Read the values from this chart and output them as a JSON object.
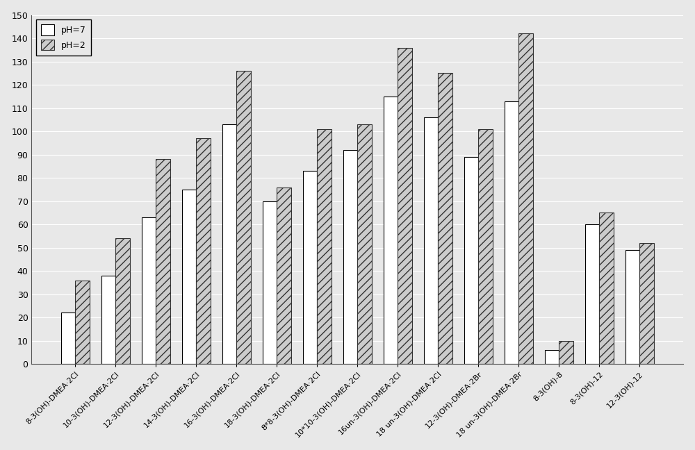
{
  "categories": [
    "8-3(OH)-DMEA·2Cl",
    "10-3(OH)-DMEA·2Cl",
    "12-3(OH)-DMEA·2Cl",
    "14-3(OH)-DMEA·2Cl",
    "16-3(OH)-DMEA·2Cl",
    "18-3(OH)-DMEA·2Cl",
    "8*8-3(OH)-DMEA·2Cl",
    "10*10-3(OH)-DMEA·2Cl",
    "16un-3(OH)-DMEA·2Cl",
    "18 un-3(OH)-DMEA·2Cl",
    "12-3(OH)-DMEA·2Br",
    "18 un-3(OH)-DMEA·2Br",
    "8-3(OH)-8",
    "8-3(OH)-12",
    "12-3(OH)-12"
  ],
  "ph7_values": [
    22,
    38,
    63,
    75,
    103,
    70,
    83,
    92,
    115,
    106,
    89,
    113,
    6,
    60,
    49
  ],
  "ph2_values": [
    36,
    54,
    88,
    97,
    126,
    76,
    101,
    103,
    136,
    125,
    101,
    142,
    10,
    65,
    52
  ],
  "ylim": [
    0,
    150
  ],
  "yticks": [
    0,
    10,
    20,
    30,
    40,
    50,
    60,
    70,
    80,
    90,
    100,
    110,
    120,
    130,
    140,
    150
  ],
  "bar_width": 0.35,
  "legend_ph7": "pH=7",
  "legend_ph2": "pH=2",
  "fig_bg": "#e8e8e8",
  "plot_bg": "#e8e8e8"
}
